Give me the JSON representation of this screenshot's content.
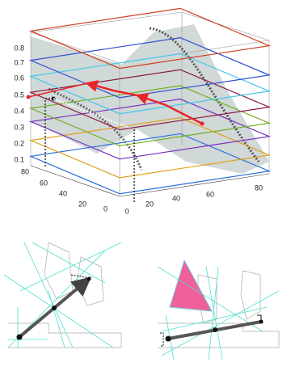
{
  "plot3d": {
    "z_ticks": [
      0.8,
      0.7,
      0.6,
      0.5,
      0.4,
      0.3,
      0.2,
      0.1
    ],
    "left_ticks": [
      80,
      60,
      40,
      20,
      0
    ],
    "right_ticks": [
      0,
      20,
      40,
      60,
      80
    ]
  }
}
